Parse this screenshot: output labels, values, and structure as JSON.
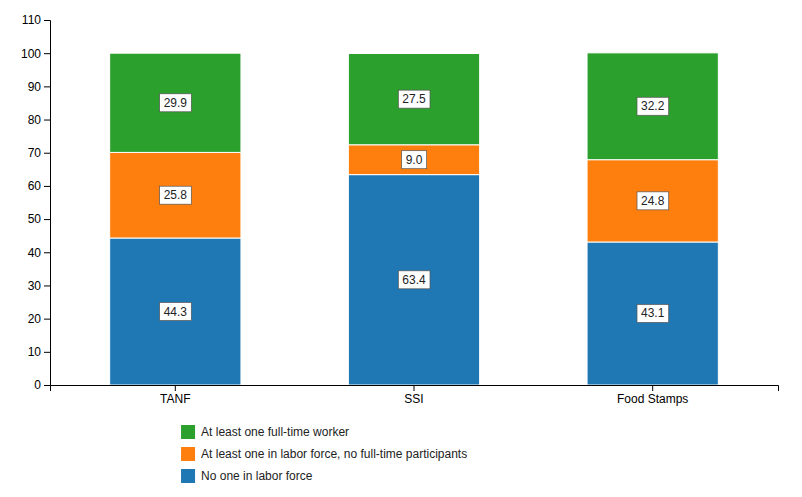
{
  "chart_data": {
    "type": "bar",
    "stacked": true,
    "data_labels": true,
    "grid": false,
    "legend": "bottom",
    "categories": [
      "TANF",
      "SSI",
      "Food Stamps"
    ],
    "series": [
      {
        "name": "No one in labor force",
        "values": [
          44.3,
          63.4,
          43.1
        ]
      },
      {
        "name": "At least one in labor force, no full-time participants",
        "values": [
          25.8,
          9.0,
          24.8
        ],
        "value_labels": [
          "25.8",
          "9.0",
          "24.8"
        ]
      },
      {
        "name": "At least one full-time worker",
        "values": [
          29.9,
          27.5,
          32.2
        ]
      }
    ],
    "ylim": [
      0,
      110
    ],
    "yticks": [
      0,
      10,
      20,
      30,
      40,
      50,
      60,
      70,
      80,
      90,
      100,
      110
    ]
  }
}
